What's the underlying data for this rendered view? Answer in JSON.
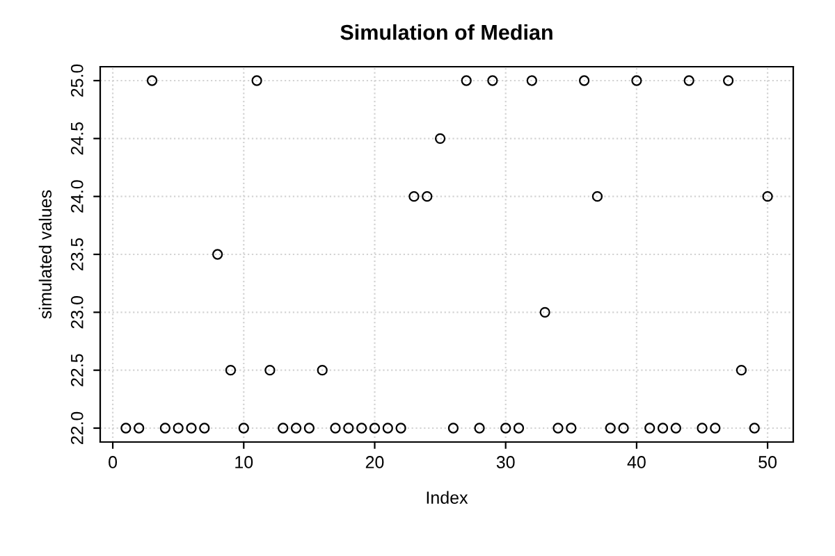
{
  "chart_data": {
    "type": "scatter",
    "title": "Simulation of Median",
    "xlabel": "Index",
    "ylabel": "simulated values",
    "x": [
      1,
      2,
      3,
      4,
      5,
      6,
      7,
      8,
      9,
      10,
      11,
      12,
      13,
      14,
      15,
      16,
      17,
      18,
      19,
      20,
      21,
      22,
      23,
      24,
      25,
      26,
      27,
      28,
      29,
      30,
      31,
      32,
      33,
      34,
      35,
      36,
      37,
      38,
      39,
      40,
      41,
      42,
      43,
      44,
      45,
      46,
      47,
      48,
      49,
      50
    ],
    "values": [
      22,
      22,
      25,
      22,
      22,
      22,
      22,
      23.5,
      22.5,
      22,
      25,
      22.5,
      22,
      22,
      22,
      22.5,
      22,
      22,
      22,
      22,
      22,
      22,
      24,
      24,
      24.5,
      22,
      25,
      22,
      25,
      22,
      22,
      25,
      23,
      22,
      22,
      25,
      24,
      22,
      22,
      25,
      22,
      22,
      22,
      25,
      22,
      22,
      25,
      22.5,
      22,
      24
    ],
    "color": "#000000",
    "marker": "circle",
    "xlim": [
      -0.96,
      51.96
    ],
    "ylim": [
      21.88,
      25.12
    ],
    "xticks": [
      0,
      10,
      20,
      30,
      40,
      50
    ],
    "yticks": [
      {
        "value": 22,
        "label": "22.0"
      },
      22.5,
      {
        "value": 23,
        "label": "23.0"
      },
      23.5,
      {
        "value": 24,
        "label": "24.0"
      },
      24.5,
      {
        "value": 25,
        "label": "25.0"
      }
    ],
    "grid": true
  }
}
